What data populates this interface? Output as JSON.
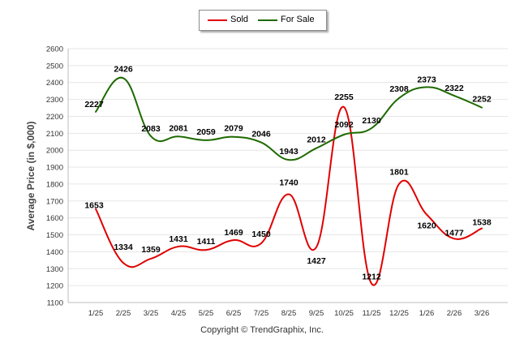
{
  "chart_data": {
    "type": "line",
    "title": "",
    "xlabel": "",
    "ylabel": "Average Price (in $,000)",
    "ylim": [
      1100,
      2600
    ],
    "ytick_step": 100,
    "categories": [
      "1/25",
      "2/25",
      "3/25",
      "4/25",
      "5/25",
      "6/25",
      "7/25",
      "8/25",
      "9/25",
      "10/25",
      "11/25",
      "12/25",
      "1/26",
      "2/26",
      "3/26"
    ],
    "series": [
      {
        "name": "Sold",
        "color": "#e00000",
        "values": [
          1653,
          1334,
          1359,
          1431,
          1411,
          1469,
          1450,
          1740,
          1427,
          2255,
          1212,
          1801,
          1620,
          1477,
          1538
        ]
      },
      {
        "name": "For Sale",
        "color": "#1e6a00",
        "values": [
          2227,
          2426,
          2083,
          2081,
          2059,
          2079,
          2046,
          1943,
          2012,
          2092,
          2130,
          2308,
          2373,
          2322,
          2252
        ]
      }
    ],
    "legend_position": "top-center",
    "grid": true
  },
  "footer": {
    "copyright": "Copyright © TrendGraphix, Inc."
  }
}
